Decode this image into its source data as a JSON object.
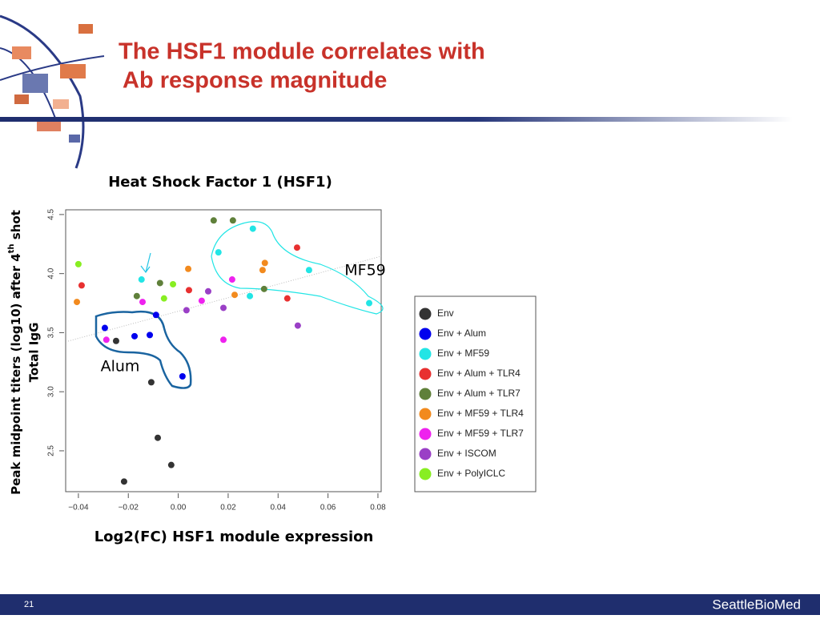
{
  "slide": {
    "title_lines": [
      "The HSF1 module correlates with",
      "Ab response magnitude"
    ],
    "page_number": "21",
    "logo": "SeattleBioMed"
  },
  "chart_data": {
    "type": "scatter",
    "title": "Heat Shock Factor 1 (HSF1)",
    "x_label": "Log2(FC) HSF1 module expression",
    "y_label": {
      "line1": [
        "Peak midpoint titers (log10) after 4",
        "th",
        " shot"
      ],
      "line2": "Total IgG"
    },
    "xlim": [
      -0.0451,
      0.0813
    ],
    "ylim": [
      2.154,
      4.54
    ],
    "xticks": [
      {
        "value": -0.04,
        "label": "−0.04"
      },
      {
        "value": -0.02,
        "label": "−0.02"
      },
      {
        "value": 0,
        "label": "0.00"
      },
      0.02,
      0.04,
      0.06,
      0.08
    ],
    "yticks": [
      2.5,
      {
        "value": 3,
        "label": "3.0"
      },
      3.5,
      {
        "value": 4,
        "label": "4.0"
      },
      4.5
    ],
    "annotations": [
      "MF59",
      "Alum"
    ],
    "series": [
      {
        "name": "Env",
        "color": "#333333",
        "x": [
          -0.0249,
          -0.0108,
          -0.0082,
          -0.0028,
          -0.0217
        ],
        "values": [
          3.43,
          3.08,
          2.61,
          2.38,
          2.24
        ]
      },
      {
        "name": "Env + Alum",
        "color": "#0000ee",
        "x": [
          -0.0294,
          -0.0175,
          -0.0114,
          -0.0089,
          0.0017
        ],
        "values": [
          3.54,
          3.47,
          3.48,
          3.65,
          3.13
        ]
      },
      {
        "name": "Env + MF59",
        "color": "#22e5e5",
        "x": [
          -0.0147,
          0.0161,
          0.0299,
          0.0287,
          0.0524,
          0.0765
        ],
        "values": [
          3.95,
          4.18,
          4.38,
          3.81,
          4.03,
          3.75
        ]
      },
      {
        "name": "Env + Alum + TLR4",
        "color": "#e83030",
        "x": [
          -0.0387,
          0.0043,
          0.0476,
          0.0437
        ],
        "values": [
          3.9,
          3.86,
          4.22,
          3.79
        ]
      },
      {
        "name": "Env + Alum + TLR7",
        "color": "#5f803a",
        "x": [
          -0.0166,
          -0.0073,
          0.0142,
          0.0219,
          0.0344
        ],
        "values": [
          3.81,
          3.92,
          4.45,
          4.45,
          3.87
        ]
      },
      {
        "name": "Env + MF59 + TLR4",
        "color": "#f28a1e",
        "x": [
          -0.0406,
          0.004,
          0.0226,
          0.0338,
          0.0347
        ],
        "values": [
          3.76,
          4.04,
          3.82,
          4.03,
          4.09
        ]
      },
      {
        "name": "Env + MF59 + TLR7",
        "color": "#ee22ee",
        "x": [
          -0.0143,
          0.0094,
          0.0216,
          -0.0288,
          0.0181
        ],
        "values": [
          3.76,
          3.77,
          3.95,
          3.44,
          3.44
        ]
      },
      {
        "name": "Env + ISCOM",
        "color": "#9a3fc6",
        "x": [
          0.0033,
          0.012,
          0.0181,
          0.0479
        ],
        "values": [
          3.69,
          3.85,
          3.71,
          3.56
        ]
      },
      {
        "name": "Env + PolyICLC",
        "color": "#88ee22",
        "x": [
          -0.04,
          -0.0021,
          -0.0057
        ],
        "values": [
          4.08,
          3.91,
          3.79
        ]
      }
    ]
  }
}
